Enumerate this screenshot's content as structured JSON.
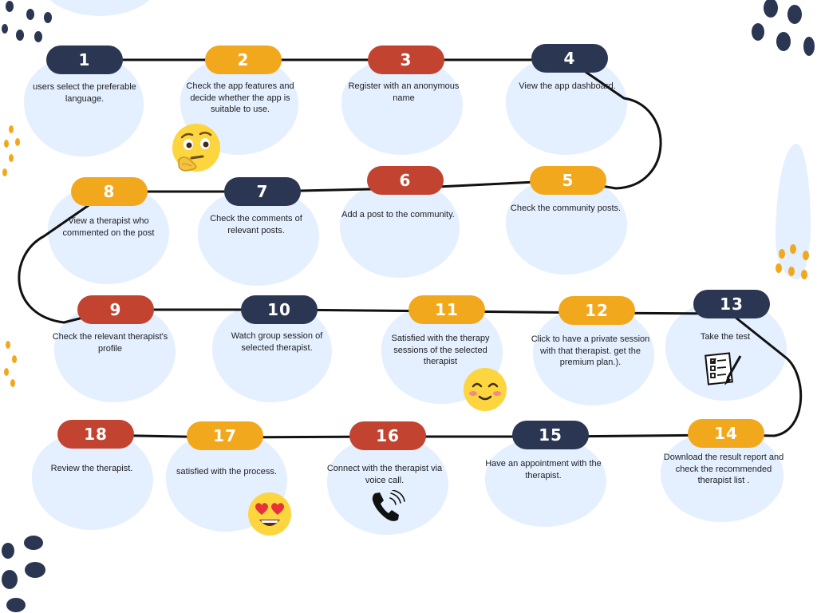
{
  "steps": [
    {
      "number": "1",
      "text": "users select the preferable language."
    },
    {
      "number": "2",
      "text": "Check the app features and decide whether the app is suitable to use."
    },
    {
      "number": "3",
      "text": "Register with an anonymous name"
    },
    {
      "number": "4",
      "text": "View the app dashboard."
    },
    {
      "number": "5",
      "text": "Check the community posts."
    },
    {
      "number": "6",
      "text": "Add a post to the community."
    },
    {
      "number": "7",
      "text": "Check the comments of relevant posts."
    },
    {
      "number": "8",
      "text": "View a therapist who commented on the post"
    },
    {
      "number": "9",
      "text": "Check the relevant therapist's profile"
    },
    {
      "number": "10",
      "text": "Watch group session of selected therapist."
    },
    {
      "number": "11",
      "text": "Satisfied with the therapy sessions of the selected therapist"
    },
    {
      "number": "12",
      "text": "Click to have a private session with that therapist. get the premium plan.)."
    },
    {
      "number": "13",
      "text": "Take the test"
    },
    {
      "number": "14",
      "text": "Download the result report and check the recommended therapist list ."
    },
    {
      "number": "15",
      "text": "Have an appointment with the therapist."
    },
    {
      "number": "16",
      "text": "Connect with the therapist via voice call."
    },
    {
      "number": "17",
      "text": "satisfied with the process."
    },
    {
      "number": "18",
      "text": "Review the therapist."
    }
  ],
  "colors": {
    "navy": "#2b3752",
    "orange": "#f2a81d",
    "red": "#c2432f",
    "bubble": "#e4efff",
    "line": "#111111"
  },
  "icons": [
    "thinking-face-icon",
    "smiling-face-icon",
    "checklist-icon",
    "phone-ringing-icon",
    "heart-eyes-face-icon"
  ]
}
